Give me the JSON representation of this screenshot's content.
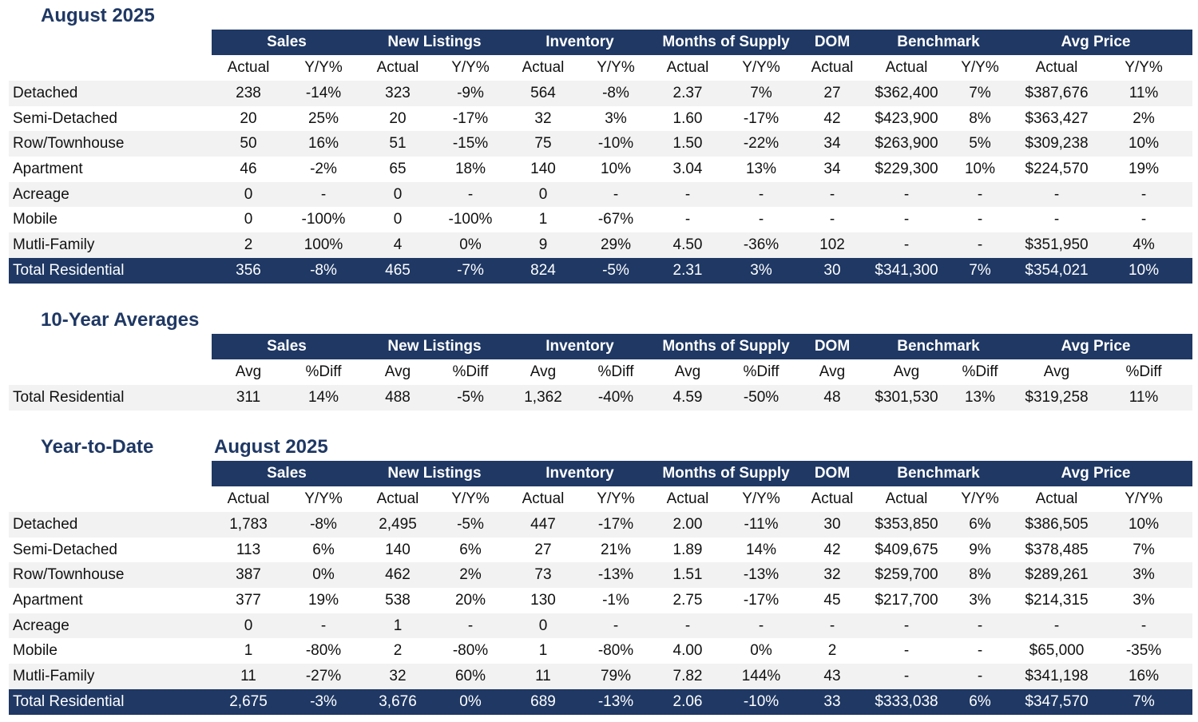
{
  "groups": [
    "Sales",
    "New Listings",
    "Inventory",
    "Months of Supply",
    "DOM",
    "Benchmark",
    "Avg Price"
  ],
  "monthly": {
    "title": "August 2025",
    "subheaders": [
      "Actual",
      "Y/Y%",
      "Actual",
      "Y/Y%",
      "Actual",
      "Y/Y%",
      "Actual",
      "Y/Y%",
      "Actual",
      "Actual",
      "Y/Y%",
      "Actual",
      "Y/Y%"
    ],
    "rows": [
      {
        "label": "Detached",
        "values": [
          "238",
          "-14%",
          "323",
          "-9%",
          "564",
          "-8%",
          "2.37",
          "7%",
          "27",
          "$362,400",
          "7%",
          "$387,676",
          "11%"
        ]
      },
      {
        "label": "Semi-Detached",
        "values": [
          "20",
          "25%",
          "20",
          "-17%",
          "32",
          "3%",
          "1.60",
          "-17%",
          "42",
          "$423,900",
          "8%",
          "$363,427",
          "2%"
        ]
      },
      {
        "label": "Row/Townhouse",
        "values": [
          "50",
          "16%",
          "51",
          "-15%",
          "75",
          "-10%",
          "1.50",
          "-22%",
          "34",
          "$263,900",
          "5%",
          "$309,238",
          "10%"
        ]
      },
      {
        "label": "Apartment",
        "values": [
          "46",
          "-2%",
          "65",
          "18%",
          "140",
          "10%",
          "3.04",
          "13%",
          "34",
          "$229,300",
          "10%",
          "$224,570",
          "19%"
        ]
      },
      {
        "label": "Acreage",
        "values": [
          "0",
          "-",
          "0",
          "-",
          "0",
          "-",
          "-",
          "-",
          "-",
          "-",
          "-",
          "-",
          "-"
        ]
      },
      {
        "label": "Mobile",
        "values": [
          "0",
          "-100%",
          "0",
          "-100%",
          "1",
          "-67%",
          "-",
          "-",
          "-",
          "-",
          "-",
          "-",
          "-"
        ]
      },
      {
        "label": "Mutli-Family",
        "values": [
          "2",
          "100%",
          "4",
          "0%",
          "9",
          "29%",
          "4.50",
          "-36%",
          "102",
          "-",
          "-",
          "$351,950",
          "4%"
        ]
      }
    ],
    "total": {
      "label": "Total Residential",
      "values": [
        "356",
        "-8%",
        "465",
        "-7%",
        "824",
        "-5%",
        "2.31",
        "3%",
        "30",
        "$341,300",
        "7%",
        "$354,021",
        "10%"
      ]
    }
  },
  "ten_year": {
    "title": "10-Year Averages",
    "subheaders": [
      "Avg",
      "%Diff",
      "Avg",
      "%Diff",
      "Avg",
      "%Diff",
      "Avg",
      "%Diff",
      "Avg",
      "Avg",
      "%Diff",
      "Avg",
      "%Diff"
    ],
    "rows": [
      {
        "label": "Total Residential",
        "values": [
          "311",
          "14%",
          "488",
          "-5%",
          "1,362",
          "-40%",
          "4.59",
          "-50%",
          "48",
          "$301,530",
          "13%",
          "$319,258",
          "11%"
        ]
      }
    ]
  },
  "ytd": {
    "title": "Year-to-Date",
    "period": "August 2025",
    "subheaders": [
      "Actual",
      "Y/Y%",
      "Actual",
      "Y/Y%",
      "Actual",
      "Y/Y%",
      "Actual",
      "Y/Y%",
      "Actual",
      "Actual",
      "Y/Y%",
      "Actual",
      "Y/Y%"
    ],
    "rows": [
      {
        "label": "Detached",
        "values": [
          "1,783",
          "-8%",
          "2,495",
          "-5%",
          "447",
          "-17%",
          "2.00",
          "-11%",
          "30",
          "$353,850",
          "6%",
          "$386,505",
          "10%"
        ]
      },
      {
        "label": "Semi-Detached",
        "values": [
          "113",
          "6%",
          "140",
          "6%",
          "27",
          "21%",
          "1.89",
          "14%",
          "42",
          "$409,675",
          "9%",
          "$378,485",
          "7%"
        ]
      },
      {
        "label": "Row/Townhouse",
        "values": [
          "387",
          "0%",
          "462",
          "2%",
          "73",
          "-13%",
          "1.51",
          "-13%",
          "32",
          "$259,700",
          "8%",
          "$289,261",
          "3%"
        ]
      },
      {
        "label": "Apartment",
        "values": [
          "377",
          "19%",
          "538",
          "20%",
          "130",
          "-1%",
          "2.75",
          "-17%",
          "45",
          "$217,700",
          "3%",
          "$214,315",
          "3%"
        ]
      },
      {
        "label": "Acreage",
        "values": [
          "0",
          "-",
          "1",
          "-",
          "0",
          "-",
          "-",
          "-",
          "-",
          "-",
          "-",
          "-",
          "-"
        ]
      },
      {
        "label": "Mobile",
        "values": [
          "1",
          "-80%",
          "2",
          "-80%",
          "1",
          "-80%",
          "4.00",
          "0%",
          "2",
          "-",
          "-",
          "$65,000",
          "-35%"
        ]
      },
      {
        "label": "Mutli-Family",
        "values": [
          "11",
          "-27%",
          "32",
          "60%",
          "11",
          "79%",
          "7.82",
          "144%",
          "43",
          "-",
          "-",
          "$341,198",
          "16%"
        ]
      }
    ],
    "total": {
      "label": "Total Residential",
      "values": [
        "2,675",
        "-3%",
        "3,676",
        "0%",
        "689",
        "-13%",
        "2.06",
        "-10%",
        "33",
        "$333,038",
        "6%",
        "$347,570",
        "7%"
      ]
    }
  }
}
